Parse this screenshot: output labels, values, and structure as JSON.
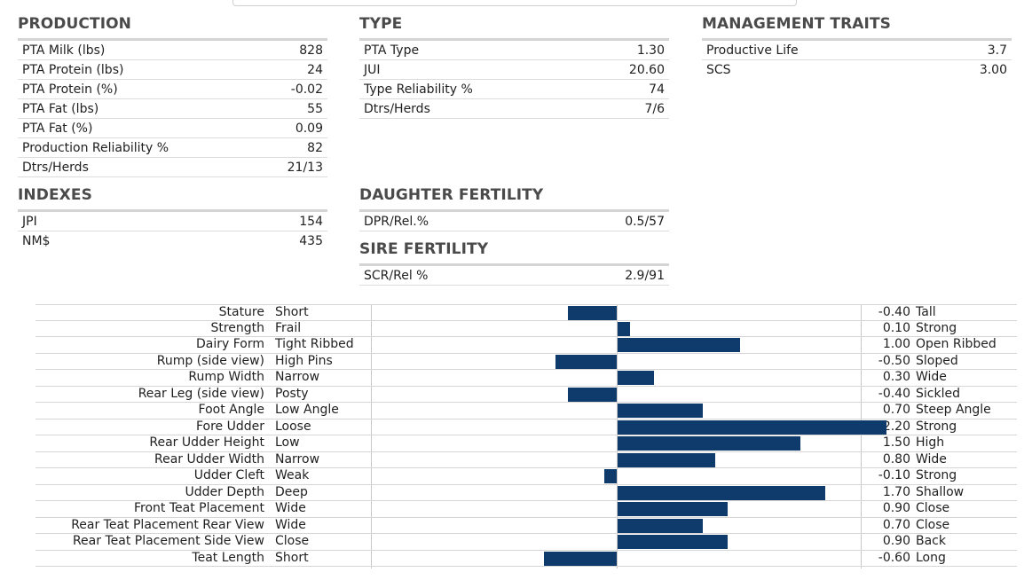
{
  "sections": {
    "production": {
      "title": "PRODUCTION",
      "rows": [
        {
          "label": "PTA Milk (lbs)",
          "value": "828"
        },
        {
          "label": "PTA Protein (lbs)",
          "value": "24"
        },
        {
          "label": "PTA Protein (%)",
          "value": "-0.02"
        },
        {
          "label": "PTA Fat (lbs)",
          "value": "55"
        },
        {
          "label": "PTA Fat (%)",
          "value": "0.09"
        },
        {
          "label": "Production Reliability %",
          "value": "82"
        },
        {
          "label": "Dtrs/Herds",
          "value": "21/13"
        }
      ]
    },
    "type": {
      "title": "TYPE",
      "rows": [
        {
          "label": "PTA Type",
          "value": "1.30"
        },
        {
          "label": "JUI",
          "value": "20.60"
        },
        {
          "label": "Type Reliability %",
          "value": "74"
        },
        {
          "label": "Dtrs/Herds",
          "value": "7/6"
        }
      ]
    },
    "management": {
      "title": "MANAGEMENT TRAITS",
      "rows": [
        {
          "label": "Productive Life",
          "value": "3.7"
        },
        {
          "label": "SCS",
          "value": "3.00"
        }
      ]
    },
    "indexes": {
      "title": "INDEXES",
      "rows": [
        {
          "label": "JPI",
          "value": "154"
        },
        {
          "label": "NM$",
          "value": "435"
        }
      ]
    },
    "daughter_fertility": {
      "title": "DAUGHTER FERTILITY",
      "rows": [
        {
          "label": "DPR/Rel.%",
          "value": "0.5/57"
        }
      ]
    },
    "sire_fertility": {
      "title": "SIRE FERTILITY",
      "rows": [
        {
          "label": "SCR/Rel %",
          "value": "2.9/91"
        }
      ]
    }
  },
  "chart_data": {
    "type": "bar",
    "orientation": "horizontal",
    "categories": [
      "Stature",
      "Strength",
      "Dairy Form",
      "Rump (side view)",
      "Rump Width",
      "Rear Leg (side view)",
      "Foot Angle",
      "Fore Udder",
      "Rear Udder Height",
      "Rear Udder Width",
      "Udder Cleft",
      "Udder Depth",
      "Front Teat Placement",
      "Rear Teat Placement Rear View",
      "Rear Teat Placement Side View",
      "Teat Length"
    ],
    "low_labels": [
      "Short",
      "Frail",
      "Tight Ribbed",
      "High Pins",
      "Narrow",
      "Posty",
      "Low Angle",
      "Loose",
      "Low",
      "Narrow",
      "Weak",
      "Deep",
      "Wide",
      "Wide",
      "Close",
      "Short"
    ],
    "high_labels": [
      "Tall",
      "Strong",
      "Open Ribbed",
      "Sloped",
      "Wide",
      "Sickled",
      "Steep Angle",
      "Strong",
      "High",
      "Wide",
      "Strong",
      "Shallow",
      "Close",
      "Close",
      "Back",
      "Long"
    ],
    "values": [
      -0.4,
      0.1,
      1.0,
      -0.5,
      0.3,
      -0.4,
      0.7,
      2.2,
      1.5,
      0.8,
      -0.1,
      1.7,
      0.9,
      0.7,
      0.9,
      -0.6
    ],
    "value_labels": [
      "-0.40",
      "0.10",
      "1.00",
      "-0.50",
      "0.30",
      "-0.40",
      "0.70",
      "2.20",
      "1.50",
      "0.80",
      "-0.10",
      "1.70",
      "0.90",
      "0.70",
      "0.90",
      "-0.60"
    ],
    "xlim": [
      -2.0,
      2.0
    ],
    "bar_color": "#0e3b6b"
  }
}
